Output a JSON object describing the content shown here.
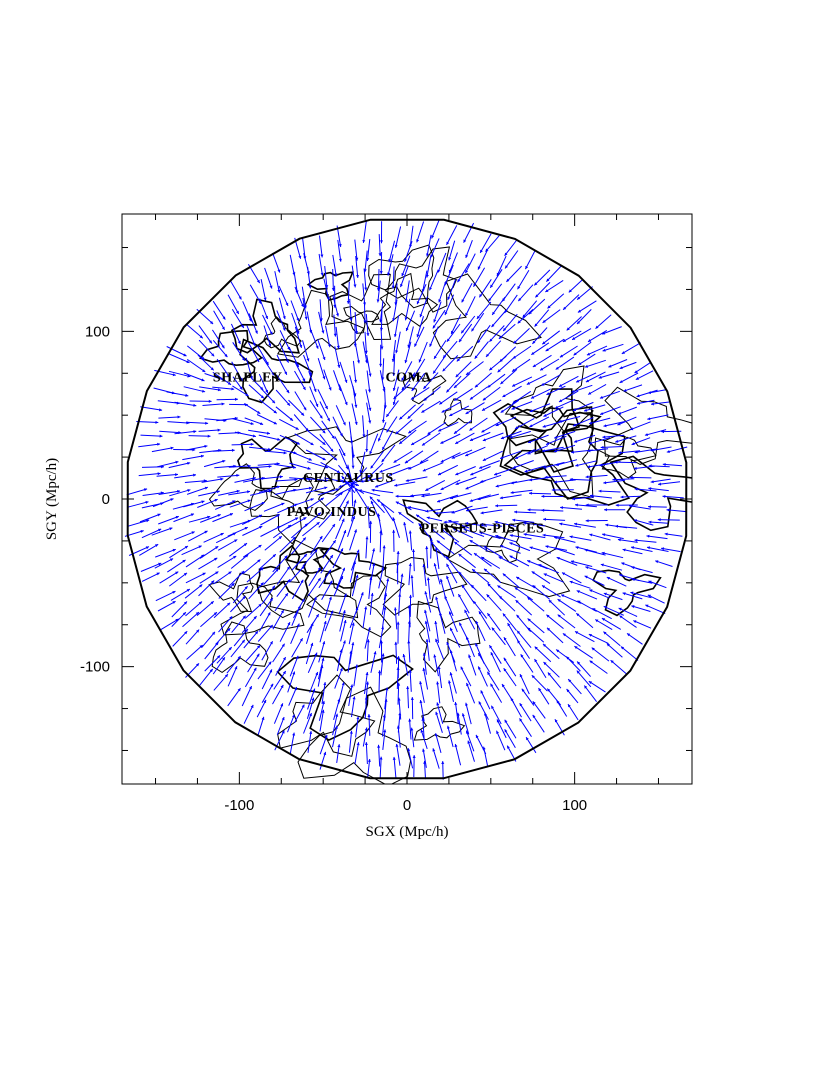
{
  "chart_data": {
    "type": "vector-field",
    "xlabel": "SGX (Mpc/h)",
    "ylabel": "SGY (Mpc/h)",
    "xlim": [
      -170,
      170
    ],
    "ylim": [
      -170,
      170
    ],
    "x_ticks": [
      -100,
      0,
      100
    ],
    "y_ticks": [
      -100,
      0,
      100
    ],
    "x_tick_labels": [
      "-100",
      "0",
      "100"
    ],
    "y_tick_labels": [
      "-100",
      "0",
      "100"
    ],
    "survey_radius": 168,
    "arrow_color": "#0000ff",
    "contour_color": "#000000",
    "grid": false,
    "annotations": [
      {
        "text": "SHAPLEY",
        "x": -95,
        "y": 70
      },
      {
        "text": "COMA",
        "x": 1,
        "y": 70
      },
      {
        "text": "CENTAURUS",
        "x": -35,
        "y": 10
      },
      {
        "text": "PAVO-INDUS",
        "x": -45,
        "y": -10
      },
      {
        "text": "PERSEUS-PISCES",
        "x": 45,
        "y": -20
      }
    ],
    "attractors": [
      {
        "name": "SHAPLEY",
        "x": -115,
        "y": 75
      },
      {
        "name": "COMA",
        "x": -3,
        "y": 72
      },
      {
        "name": "CENTAURUS",
        "x": -35,
        "y": 12
      },
      {
        "name": "PAVO-INDUS",
        "x": -37,
        "y": 2
      },
      {
        "name": "PERSEUS-PISCES",
        "x": 40,
        "y": -15
      },
      {
        "name": "",
        "x": 22,
        "y": -38
      }
    ]
  }
}
